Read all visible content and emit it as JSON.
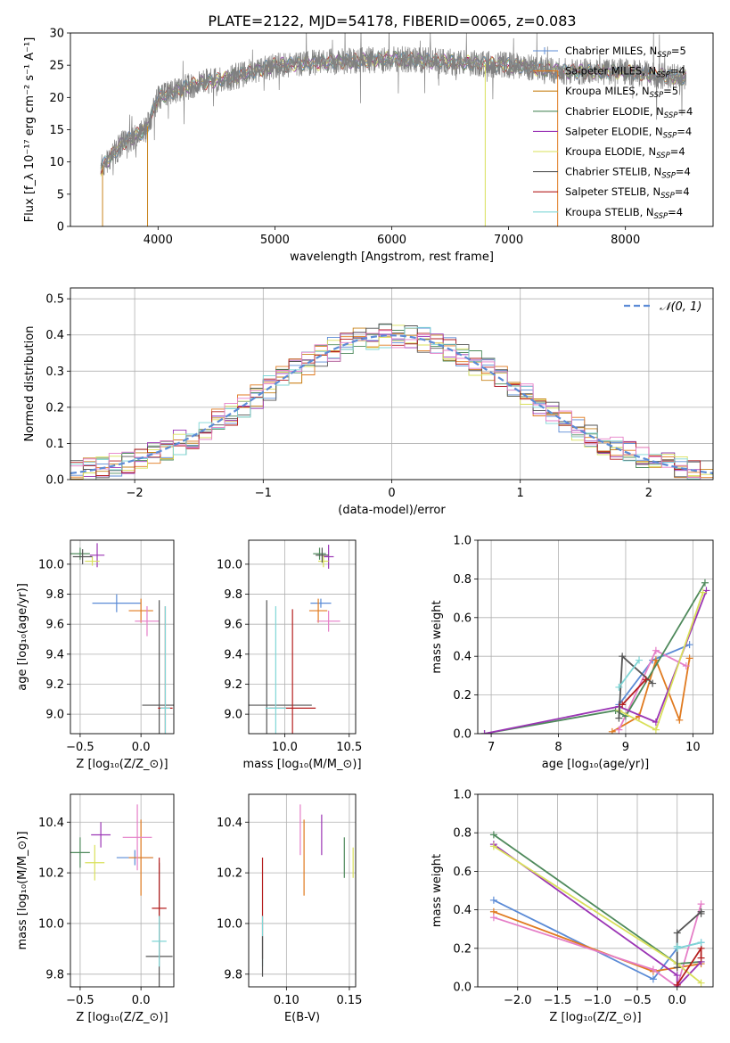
{
  "title": "PLATE=2122, MJD=54178, FIBERID=0065, z=0.083",
  "colors": [
    "#5b8bd6",
    "#e07a1f",
    "#c8841c",
    "#4f8a5c",
    "#9b35b5",
    "#d9e05a",
    "#555555",
    "#b51f1f",
    "#7fd6d6",
    "#e57ec7"
  ],
  "chart_data": [
    {
      "id": "spectrum",
      "type": "line",
      "xlabel": "wavelength [Angstrom, rest frame]",
      "ylabel": "Flux [f_λ 10⁻¹⁷ erg cm⁻² s⁻¹ A⁻¹]",
      "xlim": [
        3250,
        8750
      ],
      "ylim": [
        0,
        30
      ],
      "xticks": [
        "4000",
        "5000",
        "6000",
        "7000",
        "8000"
      ],
      "yticks": [
        "0",
        "5",
        "10",
        "15",
        "20",
        "25",
        "30"
      ],
      "grid": false,
      "legend_position": "right",
      "legend": [
        {
          "base": "Chabrier MILES, N",
          "sub": "SSP",
          "tail": "=5"
        },
        {
          "base": "Salpeter MILES, N",
          "sub": "SSP",
          "tail": "=4"
        },
        {
          "base": "Kroupa MILES, N",
          "sub": "SSP",
          "tail": "=5"
        },
        {
          "base": "Chabrier ELODIE, N",
          "sub": "SSP",
          "tail": "=4"
        },
        {
          "base": "Salpeter ELODIE, N",
          "sub": "SSP",
          "tail": "=4"
        },
        {
          "base": "Kroupa ELODIE, N",
          "sub": "SSP",
          "tail": "=4"
        },
        {
          "base": "Chabrier STELIB, N",
          "sub": "SSP",
          "tail": "=4"
        },
        {
          "base": "Salpeter STELIB, N",
          "sub": "SSP",
          "tail": "=4"
        },
        {
          "base": "Kroupa STELIB, N",
          "sub": "SSP",
          "tail": "=4"
        }
      ],
      "data_series": {
        "wavelength_range": [
          3510,
          8520
        ],
        "continuum": [
          [
            3510,
            9
          ],
          [
            3700,
            13
          ],
          [
            3900,
            15
          ],
          [
            4000,
            20
          ],
          [
            4300,
            22
          ],
          [
            4600,
            23
          ],
          [
            5000,
            25
          ],
          [
            5500,
            25.5
          ],
          [
            6000,
            26
          ],
          [
            6500,
            25.5
          ],
          [
            7000,
            25
          ],
          [
            7500,
            24
          ],
          [
            8000,
            24
          ],
          [
            8500,
            23
          ]
        ]
      }
    },
    {
      "id": "residuals",
      "type": "histogram",
      "xlabel": "(data-model)/error",
      "ylabel": "Normed distribution",
      "xlim": [
        -2.5,
        2.5
      ],
      "ylim": [
        0,
        0.53
      ],
      "xticks": [
        "−2",
        "−1",
        "0",
        "1",
        "2"
      ],
      "yticks": [
        "0.0",
        "0.1",
        "0.2",
        "0.3",
        "0.4",
        "0.5"
      ],
      "grid": true,
      "legend": "𝒩(0, 1)",
      "legend_position": "top-right",
      "normal_curve": {
        "mean": 0,
        "sigma": 1
      },
      "bin_width": 0.1
    },
    {
      "id": "age_vs_Z",
      "type": "errorbar",
      "xlabel": "Z [log₁₀(Z/Z_⊙)]",
      "ylabel": "age [log₁₀(age/yr)]",
      "xlim": [
        -0.58,
        0.27
      ],
      "ylim": [
        8.87,
        10.16
      ],
      "xticks": [
        "−0.5",
        "0.0"
      ],
      "yticks": [
        "9.0",
        "9.2",
        "9.4",
        "9.6",
        "9.8",
        "10.0"
      ],
      "grid": true,
      "points": [
        {
          "x": -0.2,
          "y": 9.74,
          "xerr": 0.2,
          "yerr": 0.06,
          "c": 0
        },
        {
          "x": 0.0,
          "y": 9.69,
          "xerr": 0.1,
          "yerr": 0.08,
          "c": 1
        },
        {
          "x": 0.05,
          "y": 9.62,
          "xerr": 0.1,
          "yerr": 0.1,
          "c": 9
        },
        {
          "x": -0.5,
          "y": 10.07,
          "xerr": 0.08,
          "yerr": 0.04,
          "c": 3
        },
        {
          "x": -0.36,
          "y": 10.06,
          "xerr": 0.06,
          "yerr": 0.08,
          "c": 4
        },
        {
          "x": -0.4,
          "y": 10.02,
          "xerr": 0.06,
          "yerr": 0.03,
          "c": 5
        },
        {
          "x": -0.48,
          "y": 10.05,
          "xerr": 0.08,
          "yerr": 0.05,
          "c": 6
        },
        {
          "x": 0.15,
          "y": 9.06,
          "xerr": 0.14,
          "yerr": 0.7,
          "c": 6
        },
        {
          "x": 0.2,
          "y": 9.04,
          "xerr": 0.06,
          "yerr": 0.68,
          "c": 7
        },
        {
          "x": 0.2,
          "y": 9.04,
          "xerr": 0.04,
          "yerr": 0.68,
          "c": 8
        }
      ]
    },
    {
      "id": "age_vs_mass",
      "type": "errorbar",
      "xlabel": "mass [log₁₀(M/M_⊙)]",
      "ylabel": "",
      "xlim": [
        9.72,
        10.55
      ],
      "ylim": [
        8.87,
        10.16
      ],
      "xticks": [
        "10.0",
        "10.5"
      ],
      "yticks": [
        "9.0",
        "9.2",
        "9.4",
        "9.6",
        "9.8",
        "10.0"
      ],
      "grid": true,
      "points": [
        {
          "x": 10.28,
          "y": 9.74,
          "xerr": 0.08,
          "yerr": 0.03,
          "c": 0
        },
        {
          "x": 10.26,
          "y": 9.69,
          "xerr": 0.07,
          "yerr": 0.08,
          "c": 1
        },
        {
          "x": 10.34,
          "y": 9.62,
          "xerr": 0.09,
          "yerr": 0.07,
          "c": 9
        },
        {
          "x": 10.27,
          "y": 10.07,
          "xerr": 0.05,
          "yerr": 0.04,
          "c": 3
        },
        {
          "x": 10.34,
          "y": 10.05,
          "xerr": 0.04,
          "yerr": 0.08,
          "c": 4
        },
        {
          "x": 10.3,
          "y": 10.02,
          "xerr": 0.04,
          "yerr": 0.04,
          "c": 5
        },
        {
          "x": 10.29,
          "y": 10.06,
          "xerr": 0.05,
          "yerr": 0.05,
          "c": 6
        },
        {
          "x": 9.86,
          "y": 9.06,
          "xerr": 0.35,
          "yerr": 0.7,
          "c": 6
        },
        {
          "x": 10.06,
          "y": 9.04,
          "xerr": 0.18,
          "yerr": 0.66,
          "c": 7
        },
        {
          "x": 9.93,
          "y": 9.04,
          "xerr": 0.08,
          "yerr": 0.68,
          "c": 8
        }
      ]
    },
    {
      "id": "massweight_vs_age",
      "type": "line",
      "xlabel": "age [log₁₀(age/yr)]",
      "ylabel": "mass weight",
      "xlim": [
        6.8,
        10.3
      ],
      "ylim": [
        0,
        1.0
      ],
      "xticks": [
        "7",
        "8",
        "9",
        "10"
      ],
      "yticks": [
        "0.0",
        "0.2",
        "0.4",
        "0.6",
        "0.8",
        "1.0"
      ],
      "grid": true,
      "series": [
        {
          "c": 0,
          "x": [
            8.9,
            9.4,
            9.95
          ],
          "y": [
            0.15,
            0.38,
            0.46
          ]
        },
        {
          "c": 1,
          "x": [
            8.8,
            9.2,
            9.45,
            9.8,
            9.95
          ],
          "y": [
            0.01,
            0.09,
            0.38,
            0.07,
            0.39
          ]
        },
        {
          "c": 9,
          "x": [
            8.9,
            9.45,
            9.9
          ],
          "y": [
            0.02,
            0.43,
            0.35
          ]
        },
        {
          "c": 3,
          "x": [
            6.9,
            8.85,
            9.0,
            10.18
          ],
          "y": [
            0.0,
            0.12,
            0.09,
            0.78
          ]
        },
        {
          "c": 4,
          "x": [
            6.9,
            8.9,
            9.45,
            10.2
          ],
          "y": [
            0.0,
            0.14,
            0.06,
            0.74
          ]
        },
        {
          "c": 5,
          "x": [
            8.9,
            9.45,
            10.15
          ],
          "y": [
            0.12,
            0.02,
            0.73
          ]
        },
        {
          "c": 6,
          "x": [
            8.9,
            8.95,
            9.4
          ],
          "y": [
            0.08,
            0.4,
            0.26
          ]
        },
        {
          "c": 7,
          "x": [
            8.95,
            9.3
          ],
          "y": [
            0.15,
            0.28
          ]
        },
        {
          "c": 8,
          "x": [
            8.9,
            9.2
          ],
          "y": [
            0.24,
            0.38
          ]
        }
      ]
    },
    {
      "id": "mass_vs_Z",
      "type": "errorbar",
      "xlabel": "Z [log₁₀(Z/Z_⊙)]",
      "ylabel": "mass [log₁₀(M/M_⊙)]",
      "xlim": [
        -0.58,
        0.27
      ],
      "ylim": [
        9.75,
        10.51
      ],
      "xticks": [
        "−0.5",
        "0.0"
      ],
      "yticks": [
        "9.8",
        "10.0",
        "10.2",
        "10.4"
      ],
      "grid": true,
      "points": [
        {
          "x": -0.05,
          "y": 10.26,
          "xerr": 0.15,
          "yerr": 0.03,
          "c": 0
        },
        {
          "x": 0.0,
          "y": 10.26,
          "xerr": 0.1,
          "yerr": 0.15,
          "c": 1
        },
        {
          "x": -0.03,
          "y": 10.34,
          "xerr": 0.12,
          "yerr": 0.13,
          "c": 9
        },
        {
          "x": -0.5,
          "y": 10.28,
          "xerr": 0.08,
          "yerr": 0.06,
          "c": 3
        },
        {
          "x": -0.33,
          "y": 10.35,
          "xerr": 0.08,
          "yerr": 0.05,
          "c": 4
        },
        {
          "x": -0.38,
          "y": 10.24,
          "xerr": 0.08,
          "yerr": 0.07,
          "c": 5
        },
        {
          "x": 0.15,
          "y": 9.87,
          "xerr": 0.11,
          "yerr": 0.37,
          "c": 6
        },
        {
          "x": 0.15,
          "y": 10.06,
          "xerr": 0.06,
          "yerr": 0.2,
          "c": 7
        },
        {
          "x": 0.15,
          "y": 9.93,
          "xerr": 0.06,
          "yerr": 0.1,
          "c": 8
        }
      ]
    },
    {
      "id": "mass_vs_ebv",
      "type": "errorbar",
      "xlabel": "E(B-V)",
      "ylabel": "",
      "xlim": [
        0.07,
        0.155
      ],
      "ylim": [
        9.75,
        10.51
      ],
      "xticks": [
        "0.10",
        "0.15"
      ],
      "yticks": [
        "9.8",
        "10.0",
        "10.2",
        "10.4"
      ],
      "grid": true,
      "points": [
        {
          "x": 0.081,
          "y": 10.06,
          "xerr": 0,
          "yerr": 0.2,
          "c": 7
        },
        {
          "x": 0.081,
          "y": 9.93,
          "xerr": 0,
          "yerr": 0.1,
          "c": 8
        },
        {
          "x": 0.081,
          "y": 9.87,
          "xerr": 0,
          "yerr": 0.08,
          "c": 6
        },
        {
          "x": 0.111,
          "y": 10.37,
          "xerr": 0,
          "yerr": 0.1,
          "c": 9
        },
        {
          "x": 0.114,
          "y": 10.26,
          "xerr": 0,
          "yerr": 0.15,
          "c": 1
        },
        {
          "x": 0.128,
          "y": 10.35,
          "xerr": 0,
          "yerr": 0.08,
          "c": 4
        },
        {
          "x": 0.146,
          "y": 10.26,
          "xerr": 0,
          "yerr": 0.08,
          "c": 3
        },
        {
          "x": 0.153,
          "y": 10.24,
          "xerr": 0,
          "yerr": 0.06,
          "c": 5
        }
      ]
    },
    {
      "id": "massweight_vs_Z",
      "type": "line",
      "xlabel": "Z [log₁₀(Z/Z_⊙)]",
      "ylabel": "mass weight",
      "xlim": [
        -2.5,
        0.45
      ],
      "ylim": [
        0,
        1.0
      ],
      "xticks": [
        "−2.0",
        "−1.5",
        "−1.0",
        "−0.5",
        "0.0"
      ],
      "yticks": [
        "0.0",
        "0.2",
        "0.4",
        "0.6",
        "0.8",
        "1.0"
      ],
      "grid": true,
      "series": [
        {
          "c": 0,
          "x": [
            -2.3,
            -0.3,
            0.0,
            0.3
          ],
          "y": [
            0.45,
            0.04,
            0.2,
            0.23
          ]
        },
        {
          "c": 1,
          "x": [
            -2.3,
            -0.3,
            0.0,
            0.3
          ],
          "y": [
            0.39,
            0.08,
            0.1,
            0.12
          ]
        },
        {
          "c": 9,
          "x": [
            -2.3,
            -0.3,
            0.0,
            0.3
          ],
          "y": [
            0.36,
            0.09,
            0.0,
            0.43
          ]
        },
        {
          "c": 3,
          "x": [
            -2.3,
            0.0,
            0.3
          ],
          "y": [
            0.79,
            0.12,
            0.13
          ]
        },
        {
          "c": 4,
          "x": [
            -2.3,
            0.0,
            0.0,
            0.3
          ],
          "y": [
            0.74,
            0.06,
            0.0,
            0.13
          ]
        },
        {
          "c": 5,
          "x": [
            -2.3,
            0.0,
            0.3
          ],
          "y": [
            0.73,
            0.12,
            0.02
          ]
        },
        {
          "c": 6,
          "x": [
            0.0,
            0.0,
            0.3,
            0.3
          ],
          "y": [
            0.1,
            0.28,
            0.39,
            0.38
          ]
        },
        {
          "c": 7,
          "x": [
            0.0,
            0.3,
            0.3
          ],
          "y": [
            0.01,
            0.2,
            0.15
          ]
        },
        {
          "c": 8,
          "x": [
            0.0,
            0.0,
            0.3
          ],
          "y": [
            0.21,
            0.2,
            0.23
          ]
        }
      ]
    }
  ]
}
